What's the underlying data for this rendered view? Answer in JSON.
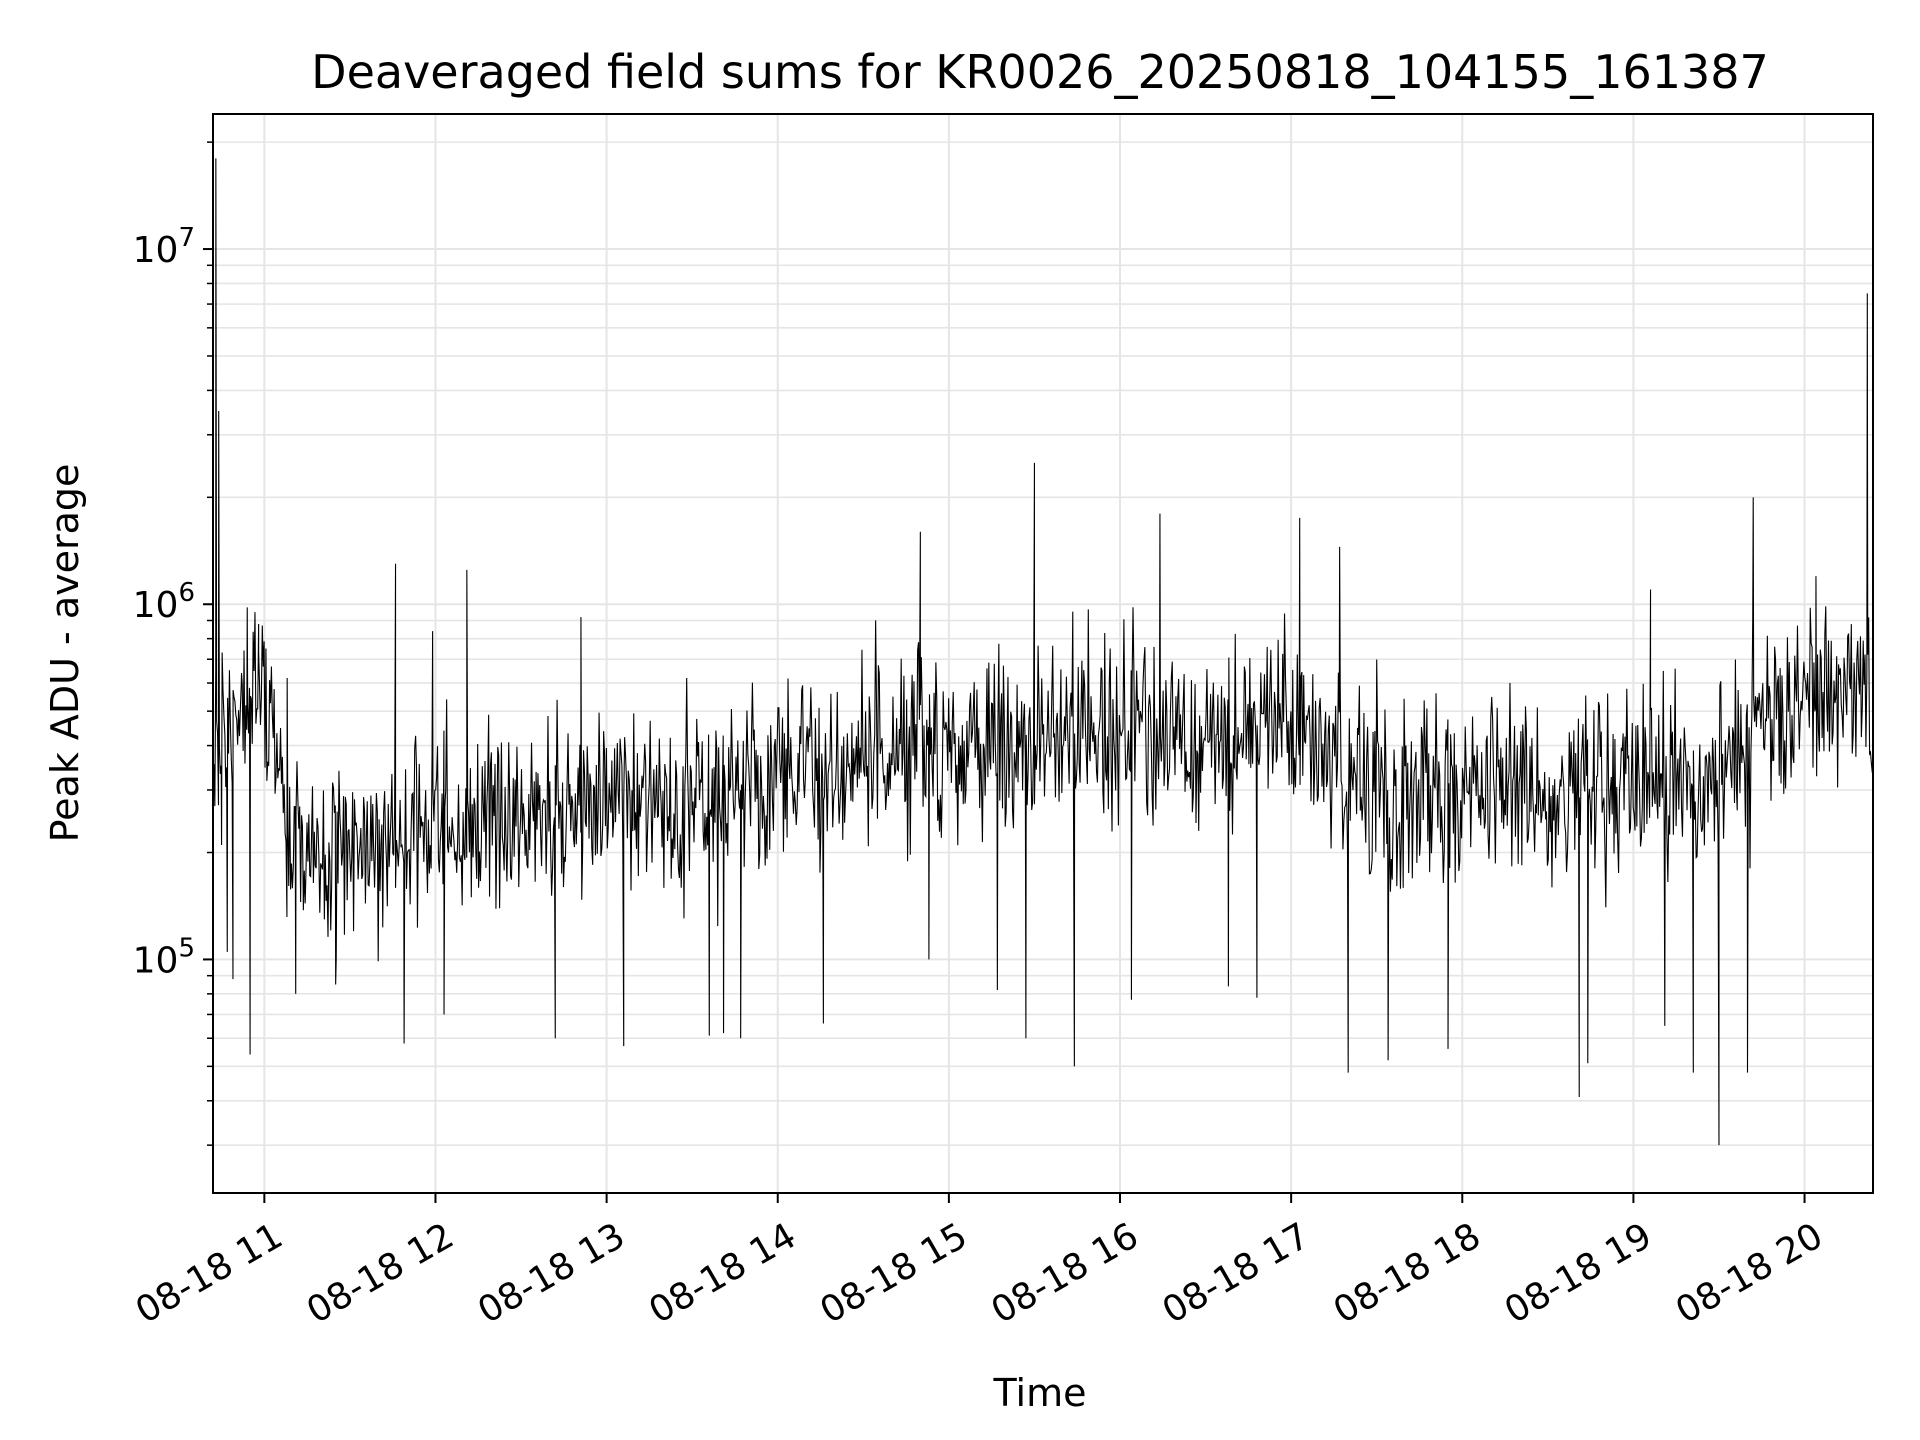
{
  "chart_data": {
    "type": "line",
    "title": "Deaveraged field sums for KR0026_20250818_104155_161387",
    "xlabel": "Time",
    "ylabel": "Peak ADU - average",
    "x_tick_labels": [
      "08-18 11",
      "08-18 12",
      "08-18 13",
      "08-18 14",
      "08-18 15",
      "08-18 16",
      "08-18 17",
      "08-18 18",
      "08-18 19",
      "08-18 20"
    ],
    "y_scale": "log",
    "y_tick_labels": [
      {
        "base": "10",
        "exp": "5",
        "value": 100000
      },
      {
        "base": "10",
        "exp": "6",
        "value": 1000000
      },
      {
        "base": "10",
        "exp": "7",
        "value": 10000000
      }
    ],
    "xlim": [
      "2025-08-18 10:42",
      "2025-08-18 20:24"
    ],
    "ylim": [
      22000,
      24000000
    ],
    "grid": true,
    "line_color": "#000000",
    "grid_color": "#e5e5e5",
    "points": [
      [
        "2025-08-18 10:42",
        420000
      ],
      [
        "2025-08-18 10:43",
        18000000
      ],
      [
        "2025-08-18 10:44",
        3500000
      ],
      [
        "2025-08-18 10:45",
        210000
      ],
      [
        "2025-08-18 10:47",
        105000
      ],
      [
        "2025-08-18 10:49",
        88000
      ],
      [
        "2025-08-18 10:52",
        640000
      ],
      [
        "2025-08-18 10:54",
        980000
      ],
      [
        "2025-08-18 10:55",
        54000
      ],
      [
        "2025-08-18 10:58",
        880000
      ],
      [
        "2025-08-18 11:08",
        620000
      ],
      [
        "2025-08-18 11:11",
        80000
      ],
      [
        "2025-08-18 11:25",
        85000
      ],
      [
        "2025-08-18 11:46",
        1300000
      ],
      [
        "2025-08-18 11:49",
        58000
      ],
      [
        "2025-08-18 11:59",
        840000
      ],
      [
        "2025-08-18 12:03",
        70000
      ],
      [
        "2025-08-18 12:11",
        1250000
      ],
      [
        "2025-08-18 12:42",
        60000
      ],
      [
        "2025-08-18 12:51",
        920000
      ],
      [
        "2025-08-18 13:06",
        57000
      ],
      [
        "2025-08-18 13:36",
        61000
      ],
      [
        "2025-08-18 13:41",
        62000
      ],
      [
        "2025-08-18 13:47",
        60000
      ],
      [
        "2025-08-18 14:16",
        66000
      ],
      [
        "2025-08-18 14:50",
        1600000
      ],
      [
        "2025-08-18 14:53",
        100000
      ],
      [
        "2025-08-18 15:17",
        82000
      ],
      [
        "2025-08-18 15:27",
        60000
      ],
      [
        "2025-08-18 15:30",
        2500000
      ],
      [
        "2025-08-18 15:44",
        50000
      ],
      [
        "2025-08-18 16:04",
        77000
      ],
      [
        "2025-08-18 16:14",
        1800000
      ],
      [
        "2025-08-18 16:38",
        84000
      ],
      [
        "2025-08-18 16:48",
        78000
      ],
      [
        "2025-08-18 17:03",
        1750000
      ],
      [
        "2025-08-18 17:17",
        1450000
      ],
      [
        "2025-08-18 17:20",
        48000
      ],
      [
        "2025-08-18 17:34",
        52000
      ],
      [
        "2025-08-18 17:55",
        56000
      ],
      [
        "2025-08-18 18:41",
        41000
      ],
      [
        "2025-08-18 18:44",
        51000
      ],
      [
        "2025-08-18 19:06",
        1100000
      ],
      [
        "2025-08-18 19:11",
        65000
      ],
      [
        "2025-08-18 19:21",
        48000
      ],
      [
        "2025-08-18 19:30",
        30000
      ],
      [
        "2025-08-18 19:40",
        48000
      ],
      [
        "2025-08-18 19:42",
        2000000
      ],
      [
        "2025-08-18 20:04",
        1200000
      ],
      [
        "2025-08-18 20:22",
        7500000
      ],
      [
        "2025-08-18 20:24",
        420000
      ]
    ]
  }
}
